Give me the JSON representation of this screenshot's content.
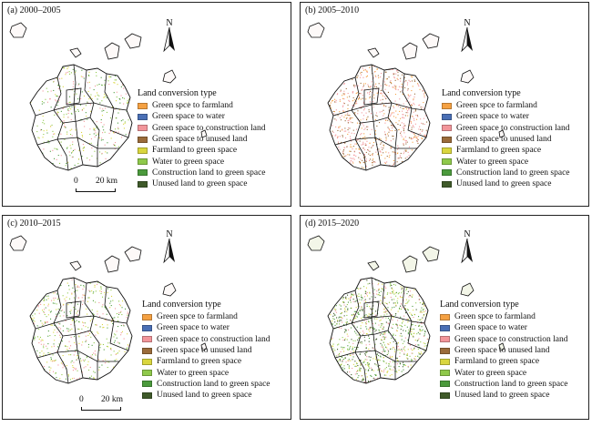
{
  "legend_title": "Land conversion type",
  "legend_items": [
    {
      "label": "Green spce to farmland",
      "color": "#f5a142"
    },
    {
      "label": "Green space to water",
      "color": "#4a6fb5"
    },
    {
      "label": "Green space to construction land",
      "color": "#f2959a"
    },
    {
      "label": "Green space to unused land",
      "color": "#9a6b3a"
    },
    {
      "label": "Farmland to green space",
      "color": "#d9d63e"
    },
    {
      "label": "Water to green space",
      "color": "#8fc94b"
    },
    {
      "label": "Construction land to green space",
      "color": "#4b9a3c"
    },
    {
      "label": "Unused land to green space",
      "color": "#3f5a2a"
    }
  ],
  "north_label": "N",
  "scale": {
    "zero": "0",
    "distance": "20 km"
  },
  "panels": [
    {
      "title": "(a) 2000–2005"
    },
    {
      "title": "(b) 2005–2010"
    },
    {
      "title": "(c) 2010–2015"
    },
    {
      "title": "(d) 2015–2020"
    }
  ]
}
